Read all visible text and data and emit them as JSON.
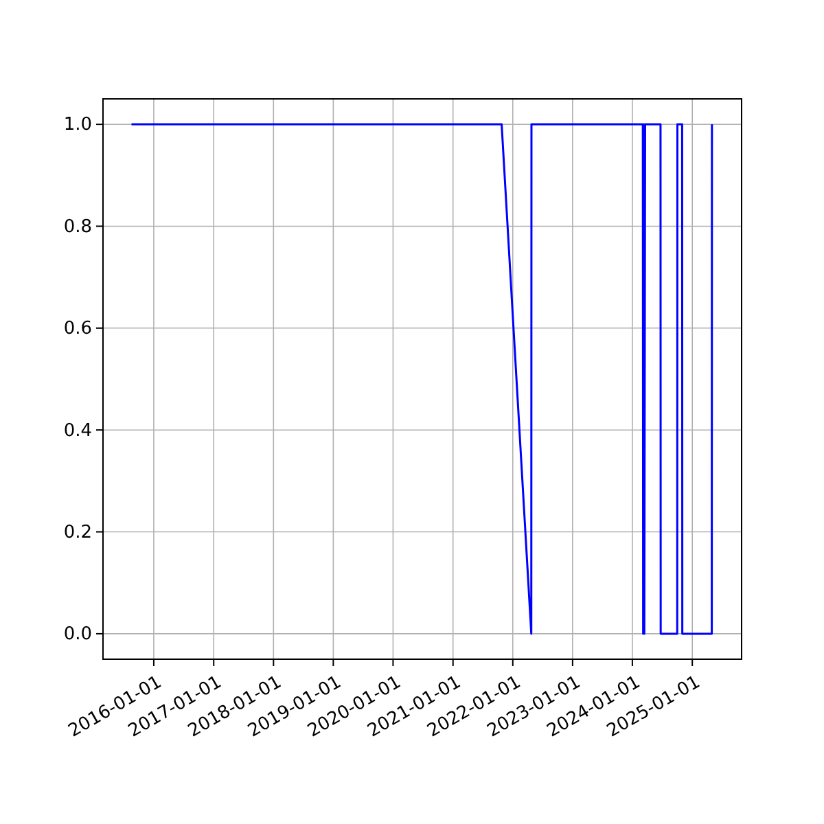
{
  "chart_data": {
    "type": "line",
    "x": [
      "2015-08-18",
      "2021-10-25",
      "2022-04-24",
      "2022-04-25",
      "2024-03-05",
      "2024-03-07",
      "2024-03-12",
      "2024-03-14",
      "2024-03-19",
      "2024-06-21",
      "2024-06-22",
      "2024-10-01",
      "2024-10-02",
      "2024-10-31",
      "2024-11-01",
      "2025-04-30",
      "2025-05-01"
    ],
    "series": [
      {
        "color": "#0000ff",
        "values": [
          1,
          1,
          0,
          1,
          1,
          0,
          1,
          0,
          1,
          1,
          0,
          0,
          1,
          1,
          0,
          0,
          1
        ]
      }
    ],
    "xlim": [
      "2015-02-25",
      "2025-10-29"
    ],
    "xticks": [
      {
        "value": "2016-01-01",
        "label": "2016-01-01"
      },
      {
        "value": "2017-01-01",
        "label": "2017-01-01"
      },
      {
        "value": "2018-01-01",
        "label": "2018-01-01"
      },
      {
        "value": "2019-01-01",
        "label": "2019-01-01"
      },
      {
        "value": "2020-01-01",
        "label": "2020-01-01"
      },
      {
        "value": "2021-01-01",
        "label": "2021-01-01"
      },
      {
        "value": "2022-01-01",
        "label": "2022-01-01"
      },
      {
        "value": "2023-01-01",
        "label": "2023-01-01"
      },
      {
        "value": "2024-01-01",
        "label": "2024-01-01"
      },
      {
        "value": "2025-01-01",
        "label": "2025-01-01"
      }
    ],
    "ylim": [
      -0.05,
      1.05
    ],
    "yticks": [
      {
        "value": 0,
        "label": "0.0"
      },
      {
        "value": 0.2,
        "label": "0.2"
      },
      {
        "value": 0.4,
        "label": "0.4"
      },
      {
        "value": 0.6,
        "label": "0.6"
      },
      {
        "value": 0.8,
        "label": "0.8"
      },
      {
        "value": 1,
        "label": "1.0"
      }
    ],
    "grid": true,
    "marker": "none",
    "line_style": "solid"
  }
}
